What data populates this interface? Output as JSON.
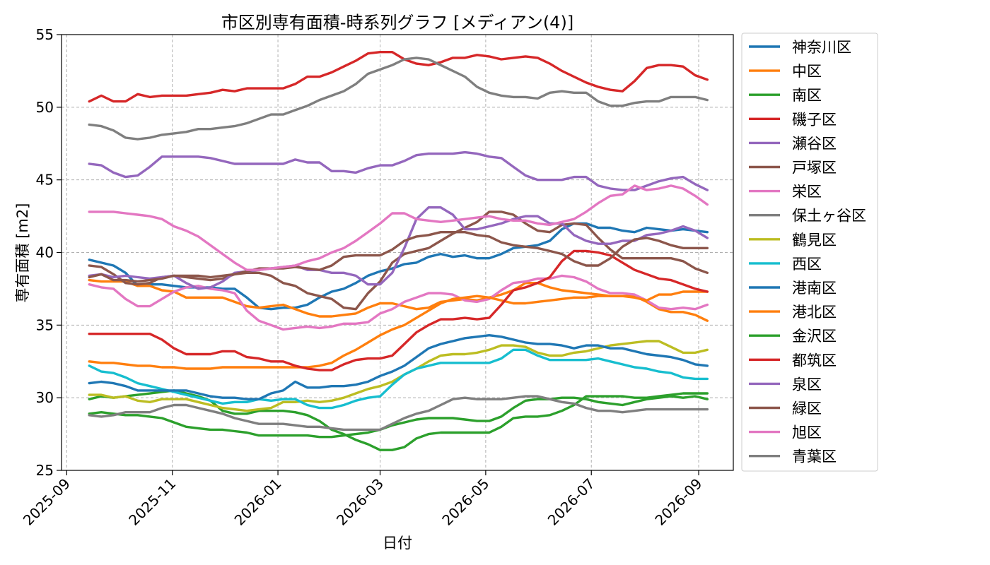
{
  "chart_data": {
    "type": "line",
    "title": "市区別専有面積-時系列グラフ [メディアン(4)]",
    "xlabel": "日付",
    "ylabel": "専有面積 [m2]",
    "xlim": [
      "2025-08-29",
      "2026-09-21"
    ],
    "ylim": [
      25,
      55
    ],
    "x_ticks": [
      "2025-09",
      "2025-11",
      "2026-01",
      "2026-03",
      "2026-05",
      "2026-07",
      "2026-09"
    ],
    "y_ticks": [
      25,
      30,
      35,
      40,
      45,
      50,
      55
    ],
    "grid": true,
    "legend_position": "outside-right",
    "x": [
      "2025-09-14",
      "2025-09-21",
      "2025-09-28",
      "2025-10-05",
      "2025-10-12",
      "2025-10-19",
      "2025-10-26",
      "2025-11-02",
      "2025-11-09",
      "2025-11-16",
      "2025-11-23",
      "2025-11-30",
      "2025-12-07",
      "2025-12-14",
      "2025-12-21",
      "2025-12-28",
      "2026-01-04",
      "2026-01-11",
      "2026-01-18",
      "2026-01-25",
      "2026-02-01",
      "2026-02-08",
      "2026-02-15",
      "2026-02-22",
      "2026-03-01",
      "2026-03-08",
      "2026-03-15",
      "2026-03-22",
      "2026-03-29",
      "2026-04-05",
      "2026-04-12",
      "2026-04-19",
      "2026-04-26",
      "2026-05-03",
      "2026-05-10",
      "2026-05-17",
      "2026-05-24",
      "2026-05-31",
      "2026-06-07",
      "2026-06-14",
      "2026-06-21",
      "2026-06-28",
      "2026-07-05",
      "2026-07-12",
      "2026-07-19",
      "2026-07-26",
      "2026-08-02",
      "2026-08-09",
      "2026-08-16",
      "2026-08-23",
      "2026-08-30",
      "2026-09-06"
    ],
    "series": [
      {
        "name": "神奈川区",
        "color": "#1f77b4",
        "values": [
          39.5,
          39.3,
          39.1,
          38.6,
          37.7,
          37.8,
          37.8,
          37.7,
          37.6,
          37.6,
          37.6,
          37.5,
          37.5,
          36.9,
          36.2,
          36.1,
          36.2,
          36.2,
          36.4,
          36.9,
          37.3,
          37.5,
          37.9,
          38.4,
          38.7,
          38.9,
          39.2,
          39.3,
          39.7,
          39.9,
          39.7,
          39.8,
          39.6,
          39.6,
          39.9,
          40.3,
          40.4,
          40.5,
          40.8,
          41.6,
          42.0,
          42.0,
          41.7,
          41.7,
          41.5,
          41.4,
          41.7,
          41.6,
          41.5,
          41.6,
          41.5,
          41.4
        ]
      },
      {
        "name": "中区",
        "color": "#ff7f0e",
        "values": [
          38.1,
          38.0,
          38.0,
          38.0,
          37.7,
          37.7,
          37.4,
          37.3,
          36.9,
          36.9,
          36.9,
          36.9,
          36.6,
          36.3,
          36.2,
          36.3,
          36.4,
          36.1,
          35.8,
          35.6,
          35.6,
          35.7,
          35.8,
          36.2,
          36.5,
          36.5,
          36.3,
          36.1,
          36.2,
          36.6,
          36.7,
          36.8,
          36.7,
          36.9,
          37.1,
          37.4,
          37.9,
          37.9,
          37.6,
          37.4,
          37.3,
          37.2,
          37.1,
          37.0,
          37.0,
          37.0,
          36.6,
          36.1,
          35.9,
          35.9,
          35.7,
          35.3
        ]
      },
      {
        "name": "南区",
        "color": "#2ca02c",
        "values": [
          29.9,
          30.1,
          30.0,
          30.1,
          30.2,
          30.3,
          30.4,
          30.5,
          30.3,
          30.1,
          29.8,
          29.1,
          28.9,
          28.9,
          29.1,
          29.1,
          29.1,
          29.0,
          28.8,
          28.4,
          27.8,
          27.5,
          27.1,
          26.8,
          26.4,
          26.4,
          26.6,
          27.2,
          27.5,
          27.6,
          27.6,
          27.6,
          27.6,
          27.6,
          28.0,
          28.6,
          28.7,
          28.7,
          28.8,
          29.1,
          29.5,
          30.1,
          30.1,
          30.1,
          30.1,
          30.0,
          30.0,
          30.1,
          30.2,
          30.3,
          30.3,
          30.3
        ]
      },
      {
        "name": "磯子区",
        "color": "#d62728",
        "values": [
          50.4,
          50.8,
          50.4,
          50.4,
          50.9,
          50.7,
          50.8,
          50.8,
          50.8,
          50.9,
          51.0,
          51.2,
          51.1,
          51.3,
          51.3,
          51.3,
          51.3,
          51.6,
          52.1,
          52.1,
          52.4,
          52.8,
          53.2,
          53.7,
          53.8,
          53.8,
          53.3,
          53.0,
          52.9,
          53.1,
          53.4,
          53.4,
          53.6,
          53.5,
          53.3,
          53.4,
          53.5,
          53.4,
          53.0,
          52.5,
          52.1,
          51.7,
          51.4,
          51.2,
          51.1,
          51.8,
          52.7,
          52.9,
          52.9,
          52.8,
          52.2,
          51.9
        ]
      },
      {
        "name": "瀬谷区",
        "color": "#9467bd",
        "values": [
          46.1,
          46.0,
          45.5,
          45.2,
          45.3,
          45.9,
          46.6,
          46.6,
          46.6,
          46.6,
          46.5,
          46.3,
          46.1,
          46.1,
          46.1,
          46.1,
          46.1,
          46.4,
          46.2,
          46.2,
          45.6,
          45.6,
          45.5,
          45.8,
          46.0,
          46.0,
          46.3,
          46.7,
          46.8,
          46.8,
          46.8,
          46.9,
          46.8,
          46.6,
          46.5,
          45.9,
          45.3,
          45.0,
          45.0,
          45.0,
          45.2,
          45.2,
          44.6,
          44.4,
          44.3,
          44.3,
          44.6,
          44.9,
          45.1,
          45.2,
          44.7,
          44.3
        ]
      },
      {
        "name": "戸塚区",
        "color": "#8c564b",
        "values": [
          39.1,
          39.0,
          38.5,
          37.9,
          37.8,
          37.9,
          38.3,
          38.4,
          38.3,
          38.2,
          38.1,
          38.2,
          38.5,
          38.6,
          38.6,
          38.4,
          37.9,
          37.7,
          37.2,
          37.0,
          36.8,
          36.2,
          36.1,
          37.2,
          38.0,
          39.3,
          39.9,
          40.1,
          40.3,
          40.8,
          41.3,
          41.7,
          42.1,
          42.8,
          42.8,
          42.6,
          42.0,
          41.5,
          41.4,
          41.9,
          42.0,
          41.9,
          41.0,
          40.2,
          39.6,
          39.6,
          39.6,
          39.6,
          39.6,
          39.4,
          38.9,
          38.6
        ]
      },
      {
        "name": "栄区",
        "color": "#e377c2",
        "values": [
          37.8,
          37.6,
          37.5,
          36.8,
          36.3,
          36.3,
          36.8,
          37.3,
          37.6,
          37.7,
          37.5,
          37.4,
          37.2,
          36.0,
          35.3,
          35.0,
          34.7,
          34.8,
          34.9,
          34.8,
          34.9,
          35.1,
          35.1,
          35.2,
          35.8,
          36.1,
          36.6,
          36.9,
          37.2,
          37.2,
          37.1,
          36.7,
          36.6,
          36.8,
          37.4,
          37.9,
          38.0,
          38.2,
          38.2,
          38.4,
          38.3,
          38.0,
          37.5,
          37.2,
          37.2,
          37.1,
          36.7,
          36.2,
          36.1,
          36.2,
          36.1,
          36.4
        ]
      },
      {
        "name": "保土ヶ谷区",
        "color": "#7f7f7f",
        "values": [
          48.8,
          48.7,
          48.4,
          47.9,
          47.8,
          47.9,
          48.1,
          48.2,
          48.3,
          48.5,
          48.5,
          48.6,
          48.7,
          48.9,
          49.2,
          49.5,
          49.5,
          49.8,
          50.1,
          50.5,
          50.8,
          51.1,
          51.6,
          52.3,
          52.6,
          52.9,
          53.3,
          53.4,
          53.3,
          52.9,
          52.5,
          52.1,
          51.4,
          51.0,
          50.8,
          50.7,
          50.7,
          50.6,
          51.0,
          51.1,
          51.0,
          51.0,
          50.4,
          50.1,
          50.1,
          50.3,
          50.4,
          50.4,
          50.7,
          50.7,
          50.7,
          50.5
        ]
      },
      {
        "name": "鶴見区",
        "color": "#bcbd22",
        "values": [
          30.2,
          30.2,
          30.0,
          30.1,
          29.8,
          29.7,
          29.9,
          29.9,
          29.9,
          29.7,
          29.5,
          29.3,
          29.2,
          29.1,
          29.2,
          29.3,
          29.7,
          29.7,
          29.8,
          29.7,
          29.8,
          30.0,
          30.3,
          30.6,
          30.8,
          31.1,
          31.6,
          32.0,
          32.5,
          32.9,
          33.0,
          33.0,
          33.1,
          33.3,
          33.6,
          33.6,
          33.5,
          33.1,
          32.9,
          32.9,
          33.1,
          33.2,
          33.4,
          33.6,
          33.7,
          33.8,
          33.9,
          33.9,
          33.5,
          33.1,
          33.1,
          33.3
        ]
      },
      {
        "name": "西区",
        "color": "#17becf",
        "values": [
          32.2,
          31.8,
          31.7,
          31.4,
          31.0,
          30.8,
          30.6,
          30.4,
          30.2,
          30.0,
          29.8,
          29.6,
          29.7,
          29.7,
          29.9,
          29.8,
          29.9,
          29.9,
          29.5,
          29.3,
          29.3,
          29.5,
          29.8,
          30.0,
          30.1,
          30.9,
          31.6,
          32.0,
          32.2,
          32.4,
          32.4,
          32.4,
          32.4,
          32.4,
          32.7,
          33.3,
          33.3,
          32.9,
          32.6,
          32.6,
          32.6,
          32.6,
          32.7,
          32.5,
          32.3,
          32.1,
          32.0,
          31.8,
          31.7,
          31.4,
          31.3,
          31.3
        ]
      },
      {
        "name": "港南区",
        "color": "#1f77b4",
        "values": [
          31.0,
          31.1,
          31.0,
          30.8,
          30.5,
          30.5,
          30.5,
          30.5,
          30.5,
          30.3,
          30.1,
          30.0,
          30.0,
          29.9,
          29.9,
          30.3,
          30.5,
          31.1,
          30.7,
          30.7,
          30.8,
          30.8,
          30.9,
          31.1,
          31.5,
          31.8,
          32.2,
          32.8,
          33.4,
          33.7,
          33.9,
          34.1,
          34.2,
          34.3,
          34.2,
          34.0,
          33.8,
          33.7,
          33.7,
          33.6,
          33.4,
          33.6,
          33.6,
          33.4,
          33.4,
          33.2,
          33.0,
          32.9,
          32.8,
          32.6,
          32.3,
          32.2
        ]
      },
      {
        "name": "港北区",
        "color": "#ff7f0e",
        "values": [
          32.5,
          32.4,
          32.4,
          32.3,
          32.2,
          32.2,
          32.1,
          32.1,
          32.0,
          32.0,
          32.0,
          32.1,
          32.1,
          32.1,
          32.1,
          32.1,
          32.1,
          32.1,
          32.1,
          32.2,
          32.4,
          32.9,
          33.3,
          33.8,
          34.3,
          34.7,
          35.0,
          35.5,
          36.0,
          36.5,
          36.8,
          36.9,
          37.0,
          36.9,
          36.7,
          36.5,
          36.5,
          36.6,
          36.7,
          36.8,
          36.9,
          36.9,
          37.0,
          37.0,
          37.0,
          36.9,
          36.7,
          37.1,
          37.1,
          37.3,
          37.3,
          37.3
        ]
      },
      {
        "name": "金沢区",
        "color": "#2ca02c",
        "values": [
          28.9,
          29.0,
          28.9,
          28.8,
          28.8,
          28.7,
          28.6,
          28.3,
          28.0,
          27.9,
          27.8,
          27.8,
          27.7,
          27.6,
          27.4,
          27.4,
          27.4,
          27.4,
          27.4,
          27.3,
          27.3,
          27.4,
          27.5,
          27.6,
          27.8,
          28.1,
          28.3,
          28.5,
          28.6,
          28.6,
          28.6,
          28.5,
          28.4,
          28.4,
          28.7,
          29.3,
          29.8,
          29.9,
          29.9,
          30.0,
          30.0,
          29.9,
          29.7,
          29.6,
          29.5,
          29.7,
          29.9,
          30.0,
          30.1,
          30.0,
          30.1,
          29.9
        ]
      },
      {
        "name": "都筑区",
        "color": "#d62728",
        "values": [
          34.4,
          34.4,
          34.4,
          34.4,
          34.4,
          34.4,
          34.0,
          33.4,
          33.0,
          33.0,
          33.0,
          33.2,
          33.2,
          32.8,
          32.7,
          32.5,
          32.5,
          32.2,
          32.0,
          31.9,
          31.9,
          32.3,
          32.6,
          32.7,
          32.7,
          32.9,
          33.7,
          34.5,
          35.0,
          35.4,
          35.4,
          35.5,
          35.4,
          35.5,
          36.4,
          37.4,
          37.6,
          37.9,
          38.3,
          39.4,
          40.1,
          40.1,
          40.0,
          39.8,
          39.3,
          38.8,
          38.5,
          38.2,
          38.1,
          37.8,
          37.5,
          37.3
        ]
      },
      {
        "name": "泉区",
        "color": "#9467bd",
        "values": [
          38.4,
          38.5,
          38.3,
          38.4,
          38.3,
          38.2,
          38.3,
          38.4,
          37.9,
          37.5,
          37.6,
          38.0,
          38.6,
          38.7,
          38.8,
          38.9,
          39.0,
          39.1,
          38.8,
          38.8,
          38.6,
          38.6,
          38.4,
          37.8,
          37.8,
          38.6,
          40.3,
          42.3,
          43.1,
          43.1,
          42.6,
          41.6,
          41.6,
          41.8,
          42.0,
          42.3,
          42.5,
          42.5,
          42.0,
          42.0,
          41.2,
          40.8,
          40.6,
          40.6,
          40.8,
          40.8,
          41.2,
          41.3,
          41.5,
          41.8,
          41.5,
          41.0
        ]
      },
      {
        "name": "緑区",
        "color": "#8c564b",
        "values": [
          38.3,
          38.5,
          38.1,
          38.1,
          38.0,
          38.1,
          38.2,
          38.4,
          38.4,
          38.4,
          38.3,
          38.4,
          38.5,
          38.7,
          38.9,
          38.9,
          38.9,
          39.0,
          38.9,
          38.8,
          39.1,
          39.7,
          39.8,
          39.8,
          39.8,
          40.2,
          40.8,
          41.1,
          41.2,
          41.4,
          41.4,
          41.4,
          41.2,
          41.1,
          40.7,
          40.5,
          40.4,
          40.3,
          40.1,
          39.9,
          39.4,
          39.1,
          39.1,
          39.6,
          40.4,
          40.9,
          41.0,
          40.8,
          40.5,
          40.3,
          40.3,
          40.3
        ]
      },
      {
        "name": "旭区",
        "color": "#e377c2",
        "values": [
          42.8,
          42.8,
          42.8,
          42.7,
          42.6,
          42.5,
          42.3,
          41.8,
          41.5,
          41.1,
          40.5,
          39.9,
          39.3,
          38.8,
          38.8,
          38.9,
          39.0,
          39.1,
          39.4,
          39.6,
          40.0,
          40.3,
          40.8,
          41.4,
          42.0,
          42.7,
          42.7,
          42.3,
          42.2,
          42.1,
          42.2,
          42.3,
          42.4,
          42.5,
          42.3,
          42.2,
          42.2,
          42.0,
          41.9,
          42.1,
          42.3,
          42.8,
          43.4,
          43.9,
          44.0,
          44.6,
          44.3,
          44.4,
          44.6,
          44.4,
          43.9,
          43.3
        ]
      },
      {
        "name": "青葉区",
        "color": "#7f7f7f",
        "values": [
          28.8,
          28.7,
          28.8,
          29.0,
          29.0,
          29.0,
          29.3,
          29.5,
          29.5,
          29.3,
          29.1,
          28.9,
          28.6,
          28.4,
          28.2,
          28.2,
          28.2,
          28.1,
          28.0,
          28.0,
          27.9,
          27.8,
          27.8,
          27.8,
          27.8,
          28.2,
          28.6,
          28.9,
          29.1,
          29.5,
          29.9,
          30.0,
          29.9,
          29.9,
          29.9,
          30.0,
          30.1,
          30.1,
          29.9,
          29.7,
          29.6,
          29.3,
          29.1,
          29.1,
          29.0,
          29.1,
          29.2,
          29.2,
          29.2,
          29.2,
          29.2,
          29.2
        ]
      }
    ]
  }
}
